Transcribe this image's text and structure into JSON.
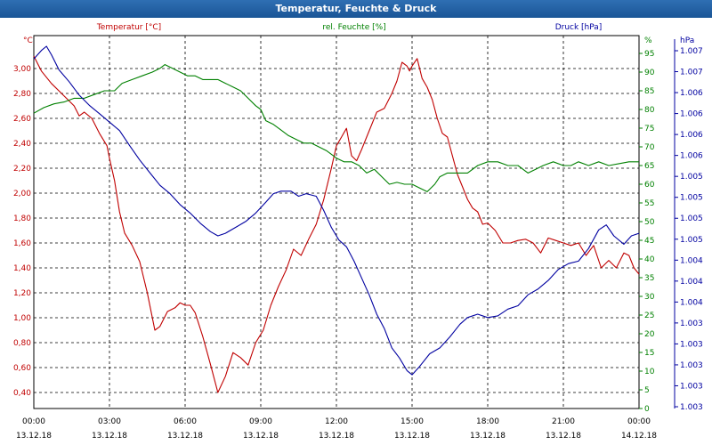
{
  "window": {
    "title": "Temperatur, Feuchte & Druck"
  },
  "axes": {
    "left": {
      "label": "Temperatur [°C]",
      "unit": "°C",
      "color": "#c00000",
      "ticks": [
        "0,40",
        "0,60",
        "0,80",
        "1,00",
        "1,20",
        "1,40",
        "1,60",
        "1,80",
        "2,00",
        "2,20",
        "2,40",
        "2,60",
        "2,80",
        "3,00"
      ],
      "range": [
        0.4,
        3.0
      ]
    },
    "middle": {
      "label": "rel. Feuchte [%]",
      "unit": "%",
      "color": "#008000",
      "ticks": [
        "0",
        "5",
        "10",
        "15",
        "20",
        "25",
        "30",
        "35",
        "40",
        "45",
        "50",
        "55",
        "60",
        "65",
        "70",
        "75",
        "80",
        "85",
        "90",
        "95"
      ],
      "range": [
        0,
        100
      ]
    },
    "right": {
      "label": "Druck [hPa]",
      "unit": "hPa",
      "color": "#0000a0",
      "ticks": [
        "1.003",
        "1.003",
        "1.003",
        "1.003",
        "1.003",
        "1.004",
        "1.004",
        "1.004",
        "1.005",
        "1.005",
        "1.005",
        "1.005",
        "1.006",
        "1.006",
        "1.006",
        "1.006",
        "1.007",
        "1.007"
      ],
      "range": [
        1002.9,
        1007.2
      ]
    },
    "x": {
      "ticks": [
        {
          "time": "00:00",
          "date": "13.12.18"
        },
        {
          "time": "03:00",
          "date": "13.12.18"
        },
        {
          "time": "06:00",
          "date": "13.12.18"
        },
        {
          "time": "09:00",
          "date": "13.12.18"
        },
        {
          "time": "12:00",
          "date": "13.12.18"
        },
        {
          "time": "15:00",
          "date": "13.12.18"
        },
        {
          "time": "18:00",
          "date": "13.12.18"
        },
        {
          "time": "21:00",
          "date": "13.12.18"
        },
        {
          "time": "00:00",
          "date": "14.12.18"
        }
      ]
    }
  },
  "chart_data": {
    "type": "line",
    "title": "Temperatur, Feuchte & Druck",
    "x_range": [
      0,
      24
    ],
    "grid": true,
    "series": [
      {
        "name": "Temperatur [°C]",
        "color": "#c00000",
        "axis": "left",
        "points": [
          [
            0,
            3.1
          ],
          [
            0.3,
            2.98
          ],
          [
            0.7,
            2.88
          ],
          [
            1.1,
            2.8
          ],
          [
            1.6,
            2.7
          ],
          [
            1.8,
            2.62
          ],
          [
            2.0,
            2.65
          ],
          [
            2.3,
            2.6
          ],
          [
            2.6,
            2.48
          ],
          [
            2.9,
            2.38
          ],
          [
            3.0,
            2.28
          ],
          [
            3.2,
            2.1
          ],
          [
            3.4,
            1.85
          ],
          [
            3.6,
            1.68
          ],
          [
            3.9,
            1.58
          ],
          [
            4.2,
            1.45
          ],
          [
            4.5,
            1.2
          ],
          [
            4.8,
            0.9
          ],
          [
            5.0,
            0.93
          ],
          [
            5.3,
            1.05
          ],
          [
            5.6,
            1.08
          ],
          [
            5.8,
            1.12
          ],
          [
            6.0,
            1.1
          ],
          [
            6.2,
            1.1
          ],
          [
            6.4,
            1.04
          ],
          [
            6.7,
            0.85
          ],
          [
            7.0,
            0.63
          ],
          [
            7.3,
            0.4
          ],
          [
            7.6,
            0.53
          ],
          [
            7.9,
            0.72
          ],
          [
            8.2,
            0.68
          ],
          [
            8.5,
            0.62
          ],
          [
            8.8,
            0.8
          ],
          [
            9.1,
            0.9
          ],
          [
            9.4,
            1.1
          ],
          [
            9.7,
            1.25
          ],
          [
            10.0,
            1.38
          ],
          [
            10.3,
            1.55
          ],
          [
            10.6,
            1.5
          ],
          [
            10.9,
            1.63
          ],
          [
            11.2,
            1.75
          ],
          [
            11.5,
            1.95
          ],
          [
            11.8,
            2.2
          ],
          [
            12.0,
            2.38
          ],
          [
            12.2,
            2.45
          ],
          [
            12.4,
            2.52
          ],
          [
            12.6,
            2.3
          ],
          [
            12.8,
            2.26
          ],
          [
            13.0,
            2.35
          ],
          [
            13.3,
            2.5
          ],
          [
            13.6,
            2.65
          ],
          [
            13.9,
            2.68
          ],
          [
            14.2,
            2.8
          ],
          [
            14.4,
            2.9
          ],
          [
            14.6,
            3.05
          ],
          [
            14.8,
            3.02
          ],
          [
            14.9,
            2.98
          ],
          [
            15.0,
            3.02
          ],
          [
            15.2,
            3.08
          ],
          [
            15.4,
            2.92
          ],
          [
            15.6,
            2.85
          ],
          [
            15.8,
            2.75
          ],
          [
            16.0,
            2.6
          ],
          [
            16.2,
            2.48
          ],
          [
            16.4,
            2.45
          ],
          [
            16.6,
            2.3
          ],
          [
            16.8,
            2.15
          ],
          [
            17.0,
            2.05
          ],
          [
            17.2,
            1.95
          ],
          [
            17.4,
            1.88
          ],
          [
            17.6,
            1.85
          ],
          [
            17.8,
            1.75
          ],
          [
            18.0,
            1.76
          ],
          [
            18.3,
            1.7
          ],
          [
            18.6,
            1.6
          ],
          [
            18.9,
            1.6
          ],
          [
            19.2,
            1.62
          ],
          [
            19.5,
            1.63
          ],
          [
            19.8,
            1.6
          ],
          [
            20.1,
            1.52
          ],
          [
            20.4,
            1.64
          ],
          [
            20.7,
            1.62
          ],
          [
            21.0,
            1.6
          ],
          [
            21.3,
            1.58
          ],
          [
            21.6,
            1.6
          ],
          [
            21.9,
            1.5
          ],
          [
            22.2,
            1.58
          ],
          [
            22.5,
            1.4
          ],
          [
            22.8,
            1.46
          ],
          [
            23.1,
            1.4
          ],
          [
            23.4,
            1.52
          ],
          [
            23.6,
            1.5
          ],
          [
            23.8,
            1.4
          ],
          [
            24.0,
            1.35
          ]
        ]
      },
      {
        "name": "rel. Feuchte [%]",
        "color": "#008000",
        "axis": "middle",
        "points": [
          [
            0,
            79
          ],
          [
            0.4,
            80.5
          ],
          [
            0.8,
            81.5
          ],
          [
            1.2,
            82
          ],
          [
            1.6,
            83
          ],
          [
            2.0,
            83
          ],
          [
            2.4,
            84
          ],
          [
            2.8,
            85
          ],
          [
            3.2,
            85
          ],
          [
            3.5,
            87
          ],
          [
            3.9,
            88
          ],
          [
            4.3,
            89
          ],
          [
            4.7,
            90
          ],
          [
            5.0,
            91
          ],
          [
            5.2,
            92
          ],
          [
            5.5,
            91
          ],
          [
            5.8,
            90
          ],
          [
            6.1,
            89
          ],
          [
            6.4,
            89
          ],
          [
            6.7,
            88
          ],
          [
            7.0,
            88
          ],
          [
            7.3,
            88
          ],
          [
            7.6,
            87
          ],
          [
            7.9,
            86
          ],
          [
            8.2,
            85
          ],
          [
            8.5,
            83
          ],
          [
            8.8,
            81
          ],
          [
            9.0,
            80
          ],
          [
            9.2,
            77
          ],
          [
            9.5,
            76
          ],
          [
            9.8,
            74.5
          ],
          [
            10.1,
            73
          ],
          [
            10.4,
            72
          ],
          [
            10.7,
            71
          ],
          [
            11.0,
            71
          ],
          [
            11.3,
            70
          ],
          [
            11.6,
            69
          ],
          [
            12.0,
            67
          ],
          [
            12.3,
            66
          ],
          [
            12.6,
            66
          ],
          [
            12.9,
            65
          ],
          [
            13.2,
            63
          ],
          [
            13.5,
            64
          ],
          [
            13.8,
            62
          ],
          [
            14.1,
            60
          ],
          [
            14.4,
            60.5
          ],
          [
            14.7,
            60
          ],
          [
            15.0,
            60
          ],
          [
            15.3,
            59
          ],
          [
            15.6,
            58
          ],
          [
            15.9,
            60
          ],
          [
            16.1,
            62
          ],
          [
            16.4,
            63
          ],
          [
            16.8,
            63
          ],
          [
            17.2,
            63
          ],
          [
            17.6,
            65
          ],
          [
            18.0,
            66
          ],
          [
            18.4,
            66
          ],
          [
            18.8,
            65
          ],
          [
            19.2,
            65
          ],
          [
            19.6,
            63
          ],
          [
            19.9,
            64
          ],
          [
            20.2,
            65
          ],
          [
            20.6,
            66
          ],
          [
            21.0,
            65
          ],
          [
            21.3,
            65
          ],
          [
            21.6,
            66
          ],
          [
            22.0,
            65
          ],
          [
            22.4,
            66
          ],
          [
            22.8,
            65
          ],
          [
            23.2,
            65.5
          ],
          [
            23.6,
            66
          ],
          [
            24.0,
            66
          ]
        ]
      },
      {
        "name": "Druck [hPa]",
        "color": "#0000a0",
        "axis": "right",
        "points": [
          [
            0,
            1007.05
          ],
          [
            0.3,
            1007.15
          ],
          [
            0.5,
            1007.2
          ],
          [
            0.7,
            1007.1
          ],
          [
            1.0,
            1006.92
          ],
          [
            1.4,
            1006.78
          ],
          [
            1.8,
            1006.62
          ],
          [
            2.2,
            1006.5
          ],
          [
            2.6,
            1006.4
          ],
          [
            3.0,
            1006.3
          ],
          [
            3.4,
            1006.2
          ],
          [
            3.8,
            1006.02
          ],
          [
            4.2,
            1005.85
          ],
          [
            4.6,
            1005.7
          ],
          [
            5.0,
            1005.55
          ],
          [
            5.4,
            1005.45
          ],
          [
            5.8,
            1005.32
          ],
          [
            6.2,
            1005.22
          ],
          [
            6.6,
            1005.1
          ],
          [
            7.0,
            1005.0
          ],
          [
            7.3,
            1004.95
          ],
          [
            7.6,
            1004.98
          ],
          [
            8.0,
            1005.05
          ],
          [
            8.4,
            1005.12
          ],
          [
            8.8,
            1005.22
          ],
          [
            9.2,
            1005.35
          ],
          [
            9.5,
            1005.45
          ],
          [
            9.8,
            1005.48
          ],
          [
            10.2,
            1005.48
          ],
          [
            10.5,
            1005.42
          ],
          [
            10.8,
            1005.45
          ],
          [
            11.2,
            1005.42
          ],
          [
            11.5,
            1005.25
          ],
          [
            11.8,
            1005.05
          ],
          [
            12.1,
            1004.9
          ],
          [
            12.4,
            1004.82
          ],
          [
            12.7,
            1004.65
          ],
          [
            13.0,
            1004.45
          ],
          [
            13.3,
            1004.25
          ],
          [
            13.6,
            1004.02
          ],
          [
            13.9,
            1003.85
          ],
          [
            14.2,
            1003.62
          ],
          [
            14.5,
            1003.5
          ],
          [
            14.8,
            1003.35
          ],
          [
            15.0,
            1003.3
          ],
          [
            15.3,
            1003.4
          ],
          [
            15.7,
            1003.55
          ],
          [
            16.1,
            1003.62
          ],
          [
            16.5,
            1003.75
          ],
          [
            16.9,
            1003.9
          ],
          [
            17.2,
            1003.98
          ],
          [
            17.6,
            1004.02
          ],
          [
            18.0,
            1003.98
          ],
          [
            18.4,
            1004.0
          ],
          [
            18.8,
            1004.08
          ],
          [
            19.2,
            1004.12
          ],
          [
            19.6,
            1004.25
          ],
          [
            20.0,
            1004.32
          ],
          [
            20.4,
            1004.42
          ],
          [
            20.8,
            1004.55
          ],
          [
            21.2,
            1004.62
          ],
          [
            21.6,
            1004.65
          ],
          [
            22.0,
            1004.8
          ],
          [
            22.4,
            1005.02
          ],
          [
            22.7,
            1005.08
          ],
          [
            23.0,
            1004.95
          ],
          [
            23.4,
            1004.85
          ],
          [
            23.7,
            1004.95
          ],
          [
            24.0,
            1004.98
          ]
        ]
      }
    ]
  }
}
